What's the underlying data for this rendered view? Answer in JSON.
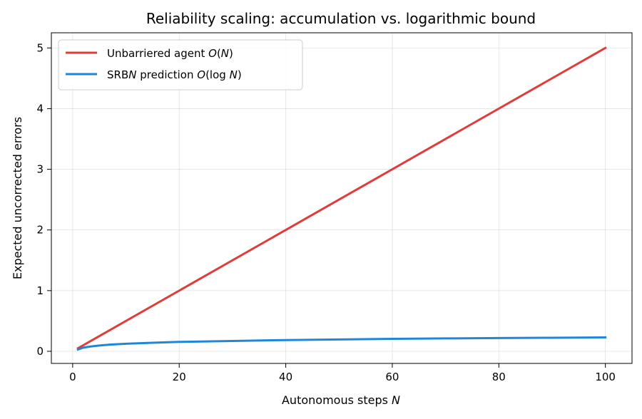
{
  "chart_data": {
    "type": "line",
    "title": "Reliability scaling: accumulation vs. logarithmic bound",
    "xlabel": "Autonomous steps N",
    "ylabel": "Expected uncorrected errors",
    "xlim": [
      -4.0,
      105.0
    ],
    "ylim": [
      -0.2,
      5.25
    ],
    "x_ticks": [
      0,
      20,
      40,
      60,
      80,
      100
    ],
    "y_ticks": [
      0,
      1,
      2,
      3,
      4,
      5
    ],
    "grid": true,
    "legend_position": "top-left",
    "series": [
      {
        "name": "Unbarriered agent O(N)",
        "color": "#e03c3a",
        "x": [
          1,
          100
        ],
        "y": [
          0.05,
          5.0
        ]
      },
      {
        "name": "SRBN prediction O(log N)",
        "color": "#1f86d8",
        "x": [
          1,
          2,
          3,
          5,
          7,
          10,
          15,
          20,
          30,
          40,
          50,
          60,
          70,
          80,
          90,
          100
        ],
        "y": [
          0.03,
          0.06,
          0.075,
          0.095,
          0.11,
          0.125,
          0.14,
          0.155,
          0.17,
          0.185,
          0.195,
          0.205,
          0.212,
          0.218,
          0.223,
          0.228
        ]
      }
    ]
  }
}
